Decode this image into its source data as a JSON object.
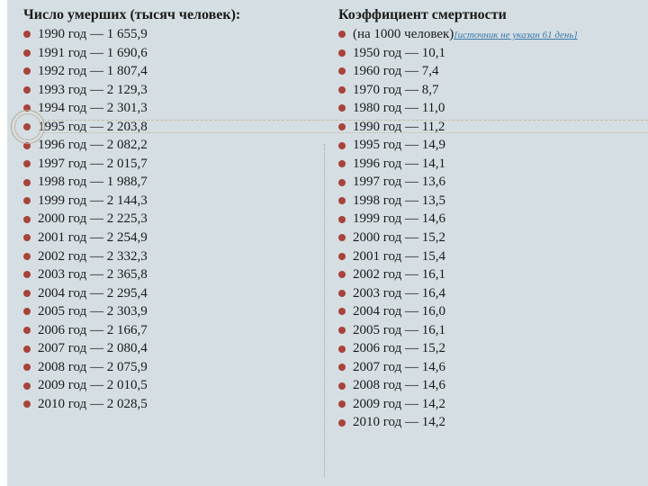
{
  "bullet_color": "#a8433a",
  "background_color": "#d5dee3",
  "circle_border_color": "#b5a890",
  "link_color": "#3a7aa8",
  "left": {
    "heading": "Число умерших (тысяч человек):",
    "items": [
      "1990 год — 1 655,9",
      "1991 год — 1 690,6",
      "1992 год — 1 807,4",
      "1993 год — 2 129,3",
      "1994 год — 2 301,3",
      "1995 год — 2 203,8",
      "1996 год — 2 082,2",
      "1997 год — 2 015,7",
      "1998 год — 1 988,7",
      "1999 год — 2 144,3",
      "2000 год — 2 225,3",
      "2001 год — 2 254,9",
      "2002 год — 2 332,3",
      "2003 год — 2 365,8",
      "2004 год — 2 295,4",
      "2005 год — 2 303,9",
      "2006 год — 2 166,7",
      "2007 год — 2 080,4",
      "2008 год — 2 075,9",
      "2009 год — 2 010,5",
      "2010 год — 2 028,5"
    ]
  },
  "right": {
    "heading": "Коэффициент смертности",
    "sub_prefix": "(на 1000 человек)",
    "source_link": "[источник не указан 61 день]",
    "items": [
      "1950 год — 10,1",
      "1960 год — 7,4",
      "1970 год — 8,7",
      "1980 год — 11,0",
      "1990 год — 11,2",
      "1995 год — 14,9",
      "1996 год — 14,1",
      "1997 год — 13,6",
      "1998 год — 13,5",
      "1999 год — 14,6",
      "2000 год — 15,2",
      "2001 год — 15,4",
      "2002 год — 16,1",
      "2003 год — 16,4",
      "2004 год — 16,0",
      "2005 год — 16,1",
      "2006 год — 15,2",
      "2007 год — 14,6",
      "2008 год — 14,6",
      "2009 год — 14,2",
      "2010 год — 14,2"
    ]
  }
}
